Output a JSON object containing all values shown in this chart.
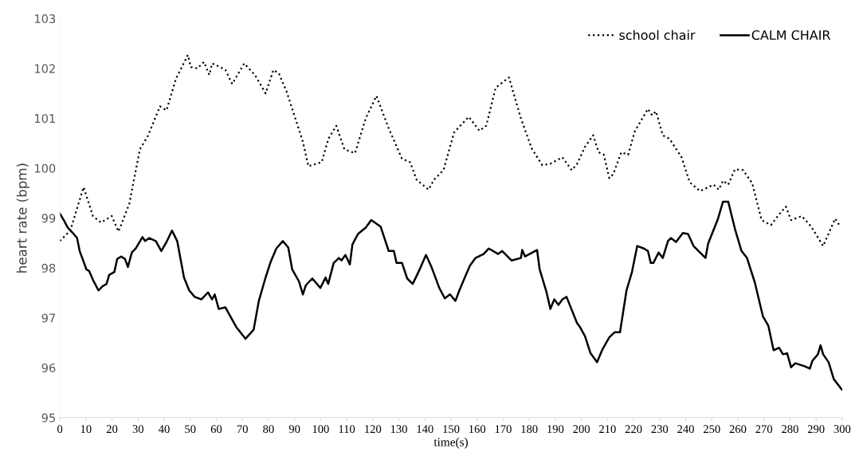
{
  "chart_data": {
    "type": "line",
    "xlabel": "time(s)",
    "ylabel": "heart rate (bpm)",
    "xlim": [
      0,
      300
    ],
    "xticks": [
      0,
      10,
      20,
      30,
      40,
      50,
      60,
      70,
      80,
      90,
      100,
      110,
      120,
      130,
      140,
      150,
      160,
      170,
      180,
      190,
      200,
      210,
      220,
      230,
      240,
      250,
      260,
      270,
      280,
      290,
      300
    ],
    "ylim": [
      95,
      103
    ],
    "yticks": [
      95,
      96,
      97,
      98,
      99,
      100,
      101,
      102,
      103
    ],
    "grid": false,
    "legend": "top right",
    "marker": "none",
    "series": [
      {
        "name": "school chair",
        "color": "#000000",
        "line_style": "dotted",
        "x": [
          0,
          4,
          9.1,
          12.7,
          15.8,
          19.9,
          22.5,
          26.6,
          30.7,
          33.7,
          38.4,
          40.9,
          44.5,
          49.1,
          50.2,
          52.7,
          55.3,
          57.3,
          58.4,
          61.4,
          63.5,
          66.1,
          70.7,
          74.8,
          78.9,
          81.9,
          84,
          87,
          93.2,
          95.3,
          100.4,
          103,
          106,
          109.1,
          113.2,
          117.3,
          121.4,
          126.1,
          131.2,
          134.3,
          136.8,
          141.4,
          143.5,
          147.1,
          151.2,
          156.8,
          160.9,
          163.5,
          167.1,
          172.2,
          176.8,
          180.9,
          185,
          188.1,
          192.7,
          196.3,
          198.4,
          201.4,
          204.5,
          206.6,
          208.6,
          210.7,
          212.2,
          215.3,
          217.9,
          220.5,
          225.5,
          227.1,
          228.6,
          231.2,
          233.8,
          238.4,
          241.5,
          245.5,
          250.7,
          252.7,
          254.3,
          256.3,
          258.9,
          262,
          265.5,
          269.1,
          272.7,
          275.3,
          278.4,
          280.4,
          284.5,
          288.1,
          292.7,
          297.3,
          298.9
        ],
        "values": [
          98.54,
          98.75,
          99.62,
          99.04,
          98.91,
          99.04,
          98.73,
          99.28,
          100.38,
          100.64,
          101.24,
          101.16,
          101.79,
          102.27,
          102.03,
          102.0,
          102.13,
          101.87,
          102.1,
          102.03,
          101.97,
          101.69,
          102.1,
          101.87,
          101.5,
          101.97,
          101.9,
          101.53,
          100.53,
          100.04,
          100.12,
          100.59,
          100.85,
          100.38,
          100.3,
          101.0,
          101.45,
          100.8,
          100.19,
          100.12,
          99.77,
          99.57,
          99.77,
          99.96,
          100.72,
          101.03,
          100.75,
          100.85,
          101.61,
          101.82,
          101.0,
          100.4,
          100.06,
          100.09,
          100.22,
          99.96,
          100.09,
          100.43,
          100.66,
          100.32,
          100.27,
          99.8,
          99.88,
          100.32,
          100.27,
          100.74,
          101.19,
          101.06,
          101.14,
          100.66,
          100.59,
          100.22,
          99.72,
          99.54,
          99.67,
          99.57,
          99.75,
          99.67,
          99.98,
          99.96,
          99.7,
          98.96,
          98.86,
          99.04,
          99.23,
          98.96,
          99.04,
          98.83,
          98.44,
          98.99,
          98.86
        ]
      },
      {
        "name": "CALM CHAIR",
        "color": "#000000",
        "line_style": "solid",
        "x": [
          0,
          1.5,
          3,
          5,
          6.6,
          7.6,
          10.2,
          11.2,
          12.7,
          14.8,
          16.3,
          17.9,
          18.9,
          20.9,
          22,
          23.5,
          25,
          26.1,
          27.6,
          29.1,
          31.7,
          32.7,
          34.3,
          36.8,
          38.9,
          40.9,
          43,
          45,
          47.6,
          49.6,
          51.7,
          54.3,
          56.8,
          58.4,
          59.4,
          60.9,
          63.5,
          67.6,
          71.2,
          74.3,
          76.3,
          78.9,
          80.9,
          83,
          85.5,
          87.6,
          89.1,
          91.7,
          93.2,
          94.3,
          96.8,
          99.9,
          101.9,
          102.9,
          105,
          107,
          108,
          109.5,
          111.2,
          112.2,
          114.3,
          117.3,
          119.4,
          123,
          126.1,
          128.1,
          129.1,
          131.2,
          133.2,
          135.3,
          136.8,
          138.4,
          140.4,
          142.5,
          145.5,
          147.6,
          149.6,
          151.7,
          153.2,
          155.3,
          157.3,
          159.4,
          162.5,
          164.5,
          168.1,
          169.6,
          173.2,
          176.8,
          177.3,
          178.4,
          183,
          184,
          186.6,
          188.1,
          189.6,
          191.2,
          192.7,
          194.3,
          198.3,
          199.4,
          201.4,
          203.5,
          206,
          208.1,
          210.7,
          212.7,
          214.8,
          217.3,
          219.4,
          221.4,
          224,
          225.5,
          226.6,
          227.6,
          229.6,
          231.2,
          233.2,
          234.3,
          236.3,
          238.9,
          240.9,
          243,
          247.6,
          248.6,
          252.2,
          254.3,
          256.3,
          258.9,
          261.4,
          263.5,
          266.5,
          269.6,
          271.7,
          273.7,
          275.8,
          277.3,
          278.9,
          280.4,
          282,
          285.6,
          287.6,
          288.6,
          290.7,
          291.7,
          292.7,
          294.8,
          296.8,
          299.9
        ],
        "values": [
          99.09,
          98.96,
          98.81,
          98.7,
          98.6,
          98.34,
          97.97,
          97.94,
          97.76,
          97.55,
          97.63,
          97.68,
          97.86,
          97.92,
          98.18,
          98.23,
          98.18,
          98.02,
          98.31,
          98.39,
          98.62,
          98.54,
          98.6,
          98.54,
          98.34,
          98.52,
          98.75,
          98.54,
          97.81,
          97.55,
          97.42,
          97.37,
          97.51,
          97.37,
          97.47,
          97.18,
          97.21,
          96.82,
          96.58,
          96.76,
          97.34,
          97.81,
          98.13,
          98.39,
          98.54,
          98.41,
          97.97,
          97.73,
          97.47,
          97.65,
          97.79,
          97.6,
          97.81,
          97.68,
          98.1,
          98.2,
          98.15,
          98.26,
          98.07,
          98.47,
          98.68,
          98.81,
          98.96,
          98.83,
          98.34,
          98.34,
          98.1,
          98.1,
          97.79,
          97.68,
          97.84,
          98.02,
          98.26,
          98.02,
          97.6,
          97.39,
          97.47,
          97.34,
          97.55,
          97.81,
          98.05,
          98.2,
          98.28,
          98.39,
          98.28,
          98.34,
          98.15,
          98.2,
          98.36,
          98.23,
          98.36,
          97.97,
          97.52,
          97.18,
          97.37,
          97.26,
          97.37,
          97.42,
          96.9,
          96.82,
          96.63,
          96.29,
          96.11,
          96.37,
          96.61,
          96.71,
          96.71,
          97.55,
          97.92,
          98.44,
          98.39,
          98.34,
          98.1,
          98.1,
          98.31,
          98.2,
          98.54,
          98.6,
          98.52,
          98.7,
          98.68,
          98.44,
          98.2,
          98.49,
          98.96,
          99.33,
          99.33,
          98.78,
          98.34,
          98.2,
          97.71,
          97.03,
          96.84,
          96.35,
          96.4,
          96.27,
          96.29,
          96.01,
          96.09,
          96.03,
          95.98,
          96.14,
          96.27,
          96.45,
          96.27,
          96.11,
          95.77,
          95.56
        ]
      }
    ]
  }
}
